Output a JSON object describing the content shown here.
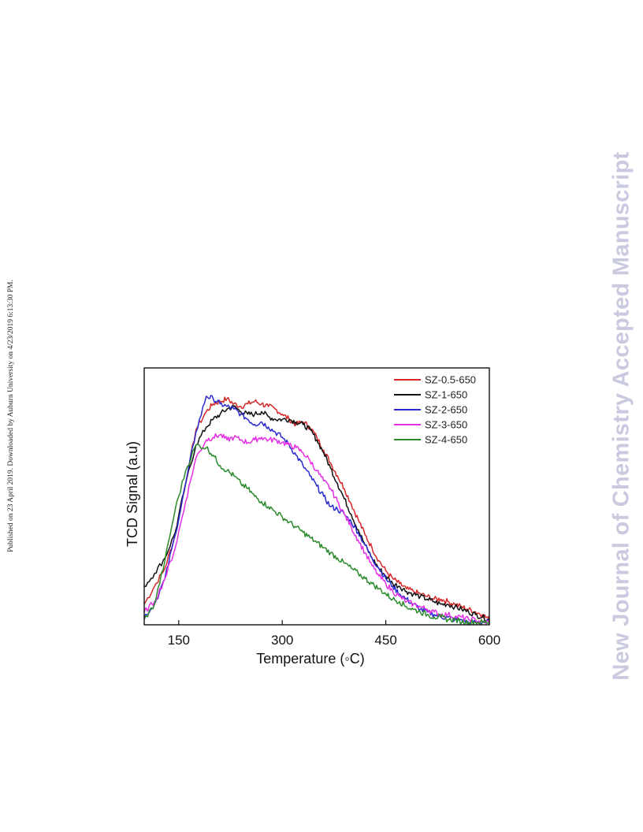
{
  "side_note": "Published on 23 April 2019. Downloaded by Auburn University on 4/23/2019 6:13:30 PM.",
  "watermark": "New Journal of Chemistry Accepted Manuscript",
  "chart_data": {
    "type": "line",
    "title": "",
    "xlabel": "Temperature (◦C)",
    "ylabel": "TCD Signal (a.u)",
    "xlim": [
      100,
      600
    ],
    "ylim": [
      0,
      100
    ],
    "xticks": [
      150,
      300,
      450,
      600
    ],
    "xtick_labels": [
      "150",
      "300",
      "450",
      "600"
    ],
    "yticks_shown": false,
    "grid": false,
    "legend_position": "top-right",
    "series": [
      {
        "name": "SZ-0.5-650",
        "color": "#d62728",
        "x": [
          100,
          115,
          130,
          145,
          160,
          175,
          190,
          200,
          210,
          220,
          230,
          240,
          250,
          260,
          270,
          280,
          290,
          300,
          310,
          320,
          330,
          340,
          350,
          360,
          370,
          380,
          390,
          400,
          410,
          420,
          430,
          440,
          450,
          460,
          470,
          480,
          490,
          500,
          510,
          520,
          530,
          540,
          550,
          560,
          570,
          580,
          590,
          600
        ],
        "y": [
          8,
          15,
          22,
          35,
          55,
          76,
          83,
          86,
          87,
          88,
          86,
          85,
          86,
          87,
          86,
          85,
          84,
          82,
          80,
          78,
          79,
          77,
          73,
          68,
          63,
          58,
          53,
          47,
          41,
          35,
          30,
          25,
          21,
          18,
          16,
          14,
          13,
          12,
          11,
          10,
          10,
          9,
          8,
          7,
          6,
          5,
          4,
          2
        ]
      },
      {
        "name": "SZ-1-650",
        "color": "#111111",
        "x": [
          100,
          115,
          130,
          145,
          160,
          175,
          190,
          200,
          210,
          220,
          230,
          240,
          250,
          260,
          270,
          280,
          290,
          300,
          310,
          320,
          330,
          340,
          350,
          360,
          370,
          380,
          390,
          400,
          410,
          420,
          430,
          440,
          450,
          460,
          470,
          480,
          490,
          500,
          510,
          520,
          530,
          540,
          550,
          560,
          570,
          580,
          590,
          600
        ],
        "y": [
          15,
          20,
          26,
          36,
          55,
          70,
          77,
          80,
          82,
          84,
          85,
          83,
          82,
          82,
          83,
          81,
          80,
          80,
          80,
          79,
          78,
          76,
          72,
          67,
          61,
          55,
          49,
          43,
          37,
          31,
          26,
          22,
          19,
          16,
          15,
          13,
          12,
          11,
          10,
          9,
          8,
          8,
          7,
          6,
          5,
          4,
          3,
          2
        ]
      },
      {
        "name": "SZ-2-650",
        "color": "#2a2ad0",
        "x": [
          100,
          115,
          130,
          145,
          160,
          175,
          190,
          200,
          210,
          220,
          230,
          240,
          250,
          260,
          270,
          280,
          290,
          300,
          310,
          320,
          330,
          340,
          350,
          360,
          370,
          380,
          390,
          400,
          410,
          420,
          430,
          440,
          450,
          460,
          470,
          480,
          490,
          500,
          510,
          520,
          530,
          540,
          550,
          560,
          570,
          580,
          590,
          600
        ],
        "y": [
          3,
          8,
          18,
          35,
          55,
          75,
          89,
          88,
          86,
          85,
          84,
          82,
          80,
          78,
          79,
          77,
          75,
          73,
          70,
          66,
          62,
          58,
          54,
          50,
          46,
          45,
          43,
          40,
          36,
          31,
          26,
          22,
          18,
          15,
          12,
          10,
          8,
          6,
          5,
          4,
          3,
          3,
          2,
          2,
          1,
          1,
          1,
          1
        ]
      },
      {
        "name": "SZ-3-650",
        "color": "#e52fe5",
        "x": [
          100,
          115,
          130,
          145,
          160,
          175,
          190,
          200,
          210,
          220,
          230,
          240,
          250,
          260,
          270,
          280,
          290,
          300,
          310,
          320,
          330,
          340,
          350,
          360,
          370,
          380,
          390,
          400,
          410,
          420,
          430,
          440,
          450,
          460,
          470,
          480,
          490,
          500,
          510,
          520,
          530,
          540,
          550,
          560,
          570,
          580,
          590,
          600
        ],
        "y": [
          5,
          9,
          18,
          30,
          48,
          65,
          72,
          73,
          74,
          72,
          73,
          72,
          71,
          72,
          73,
          72,
          72,
          71,
          70,
          69,
          67,
          64,
          60,
          56,
          53,
          48,
          43,
          38,
          33,
          28,
          23,
          19,
          16,
          13,
          11,
          9,
          8,
          7,
          6,
          5,
          4,
          4,
          3,
          3,
          2,
          2,
          1,
          1
        ]
      },
      {
        "name": "SZ-4-650",
        "color": "#2a8a2a",
        "x": [
          100,
          115,
          130,
          145,
          160,
          175,
          190,
          200,
          210,
          220,
          230,
          240,
          250,
          260,
          270,
          280,
          290,
          300,
          310,
          320,
          330,
          340,
          350,
          360,
          370,
          380,
          390,
          400,
          410,
          420,
          430,
          440,
          450,
          460,
          470,
          480,
          490,
          500,
          510,
          520,
          530,
          540,
          550,
          560,
          570,
          580,
          590,
          600
        ],
        "y": [
          2,
          8,
          25,
          45,
          60,
          70,
          69,
          66,
          62,
          60,
          58,
          55,
          53,
          50,
          48,
          46,
          44,
          42,
          40,
          38,
          36,
          34,
          32,
          30,
          28,
          26,
          24,
          22,
          20,
          18,
          16,
          14,
          12,
          10,
          9,
          7,
          6,
          5,
          4,
          3,
          3,
          2,
          2,
          1,
          1,
          1,
          1,
          1
        ]
      }
    ]
  }
}
